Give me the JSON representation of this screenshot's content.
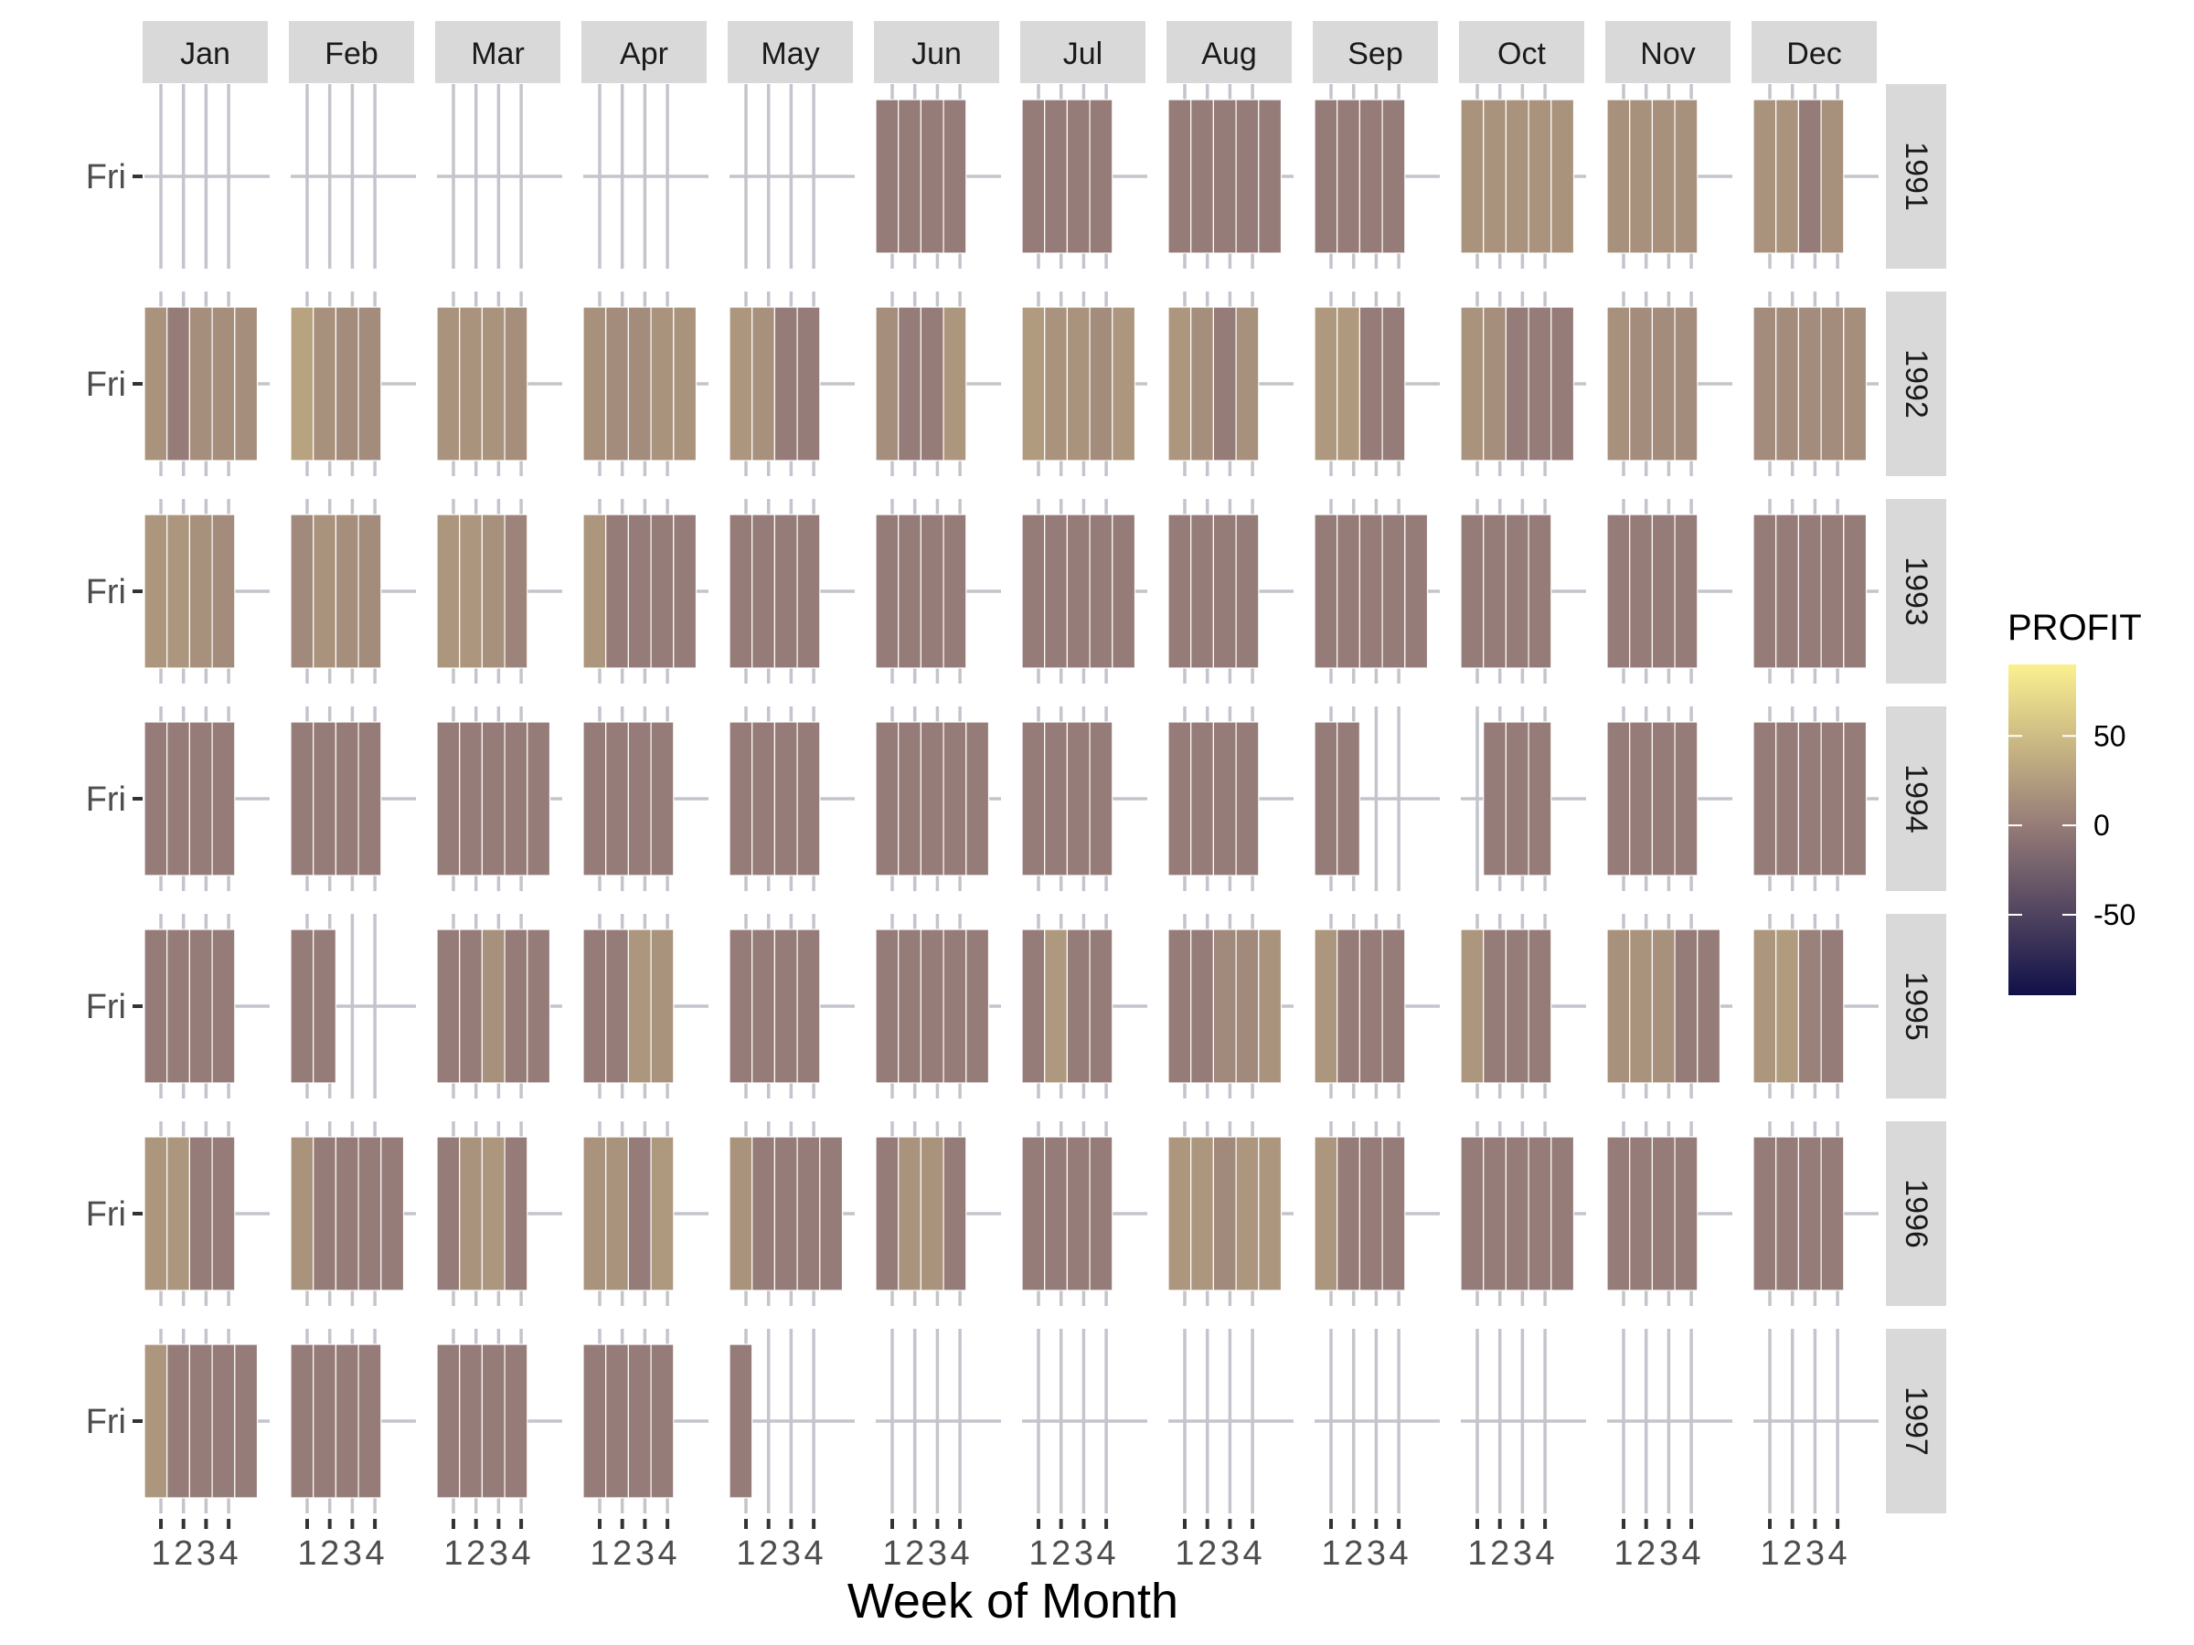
{
  "chart_data": {
    "type": "heatmap",
    "description_free": true,
    "xlabel": "Week of Month",
    "ylabel": "",
    "y_tick_label": "Fri",
    "week_ticks": [
      "1",
      "2",
      "3",
      "4"
    ],
    "months": [
      "Jan",
      "Feb",
      "Mar",
      "Apr",
      "May",
      "Jun",
      "Jul",
      "Aug",
      "Sep",
      "Oct",
      "Nov",
      "Dec"
    ],
    "years": [
      "1991",
      "1992",
      "1993",
      "1994",
      "1995",
      "1996",
      "1997"
    ],
    "legend": {
      "title": "PROFIT",
      "breaks": [
        50,
        0,
        -50
      ],
      "labels": [
        "50",
        "0",
        "-50"
      ],
      "range": [
        -95,
        90
      ],
      "colors": {
        "low": "#101049",
        "mid": "#967C78",
        "high": "#FBF18F"
      }
    },
    "cells": {
      "1991": [
        null,
        null,
        null,
        null,
        null,
        [
          0,
          0,
          0,
          0
        ],
        [
          0,
          0,
          0,
          0
        ],
        [
          0,
          0,
          0,
          0,
          0
        ],
        [
          0,
          0,
          0,
          0
        ],
        [
          18,
          18,
          18,
          18,
          18
        ],
        [
          16,
          16,
          16,
          16
        ],
        [
          18,
          18,
          0,
          16
        ]
      ],
      "1992": [
        [
          18,
          0,
          14,
          14,
          14
        ],
        [
          30,
          16,
          12,
          12
        ],
        [
          18,
          18,
          18,
          14
        ],
        [
          16,
          12,
          12,
          18,
          18
        ],
        [
          20,
          16,
          0,
          0
        ],
        [
          14,
          0,
          0,
          20
        ],
        [
          24,
          18,
          18,
          12,
          20
        ],
        [
          20,
          14,
          0,
          16
        ],
        [
          22,
          22,
          0,
          0
        ],
        [
          18,
          14,
          0,
          0,
          0
        ],
        [
          16,
          12,
          12,
          12
        ],
        [
          12,
          12,
          12,
          12,
          14
        ]
      ],
      "1993": [
        [
          20,
          20,
          16,
          12
        ],
        [
          10,
          18,
          14,
          12
        ],
        [
          20,
          20,
          16,
          6
        ],
        [
          20,
          0,
          0,
          0,
          0
        ],
        [
          0,
          0,
          0,
          0
        ],
        [
          0,
          0,
          0,
          0
        ],
        [
          0,
          0,
          0,
          0,
          0
        ],
        [
          0,
          0,
          0,
          0
        ],
        [
          0,
          0,
          0,
          0,
          0
        ],
        [
          0,
          0,
          0,
          0
        ],
        [
          0,
          0,
          0,
          0
        ],
        [
          0,
          0,
          0,
          0,
          0
        ]
      ],
      "1994": [
        [
          0,
          0,
          0,
          0
        ],
        [
          0,
          0,
          0,
          0
        ],
        [
          0,
          0,
          0,
          0,
          0
        ],
        [
          0,
          0,
          0,
          0
        ],
        [
          0,
          0,
          0,
          0
        ],
        [
          0,
          0,
          0,
          0,
          0
        ],
        [
          0,
          0,
          0,
          0
        ],
        [
          0,
          0,
          0,
          0
        ],
        [
          0,
          0,
          null,
          null
        ],
        [
          null,
          0,
          0,
          0
        ],
        [
          0,
          0,
          0,
          0
        ],
        [
          0,
          0,
          0,
          0,
          0
        ]
      ],
      "1995": [
        [
          0,
          0,
          0,
          0
        ],
        [
          0,
          0,
          null,
          null
        ],
        [
          0,
          0,
          16,
          0,
          0
        ],
        [
          0,
          0,
          20,
          18
        ],
        [
          0,
          0,
          0,
          0
        ],
        [
          0,
          0,
          0,
          0,
          0
        ],
        [
          0,
          22,
          0,
          0
        ],
        [
          0,
          0,
          10,
          10,
          18
        ],
        [
          20,
          0,
          0,
          0
        ],
        [
          20,
          0,
          0,
          0
        ],
        [
          16,
          18,
          16,
          0,
          0
        ],
        [
          20,
          24,
          4,
          0
        ]
      ],
      "1996": [
        [
          20,
          20,
          0,
          0
        ],
        [
          18,
          0,
          0,
          0,
          0
        ],
        [
          0,
          18,
          20,
          0
        ],
        [
          18,
          18,
          0,
          22
        ],
        [
          18,
          0,
          0,
          0,
          0
        ],
        [
          0,
          18,
          18,
          0
        ],
        [
          0,
          0,
          0,
          0
        ],
        [
          20,
          20,
          10,
          20,
          20
        ],
        [
          20,
          0,
          0,
          0
        ],
        [
          0,
          0,
          0,
          0,
          0
        ],
        [
          0,
          0,
          0,
          0
        ],
        [
          0,
          0,
          0,
          0
        ]
      ],
      "1997": [
        [
          20,
          0,
          0,
          0,
          0
        ],
        [
          0,
          0,
          0,
          0
        ],
        [
          0,
          0,
          0,
          0
        ],
        [
          0,
          0,
          0,
          0
        ],
        [
          0,
          null,
          null,
          null
        ],
        null,
        null,
        null,
        null,
        null,
        null,
        null
      ]
    }
  }
}
